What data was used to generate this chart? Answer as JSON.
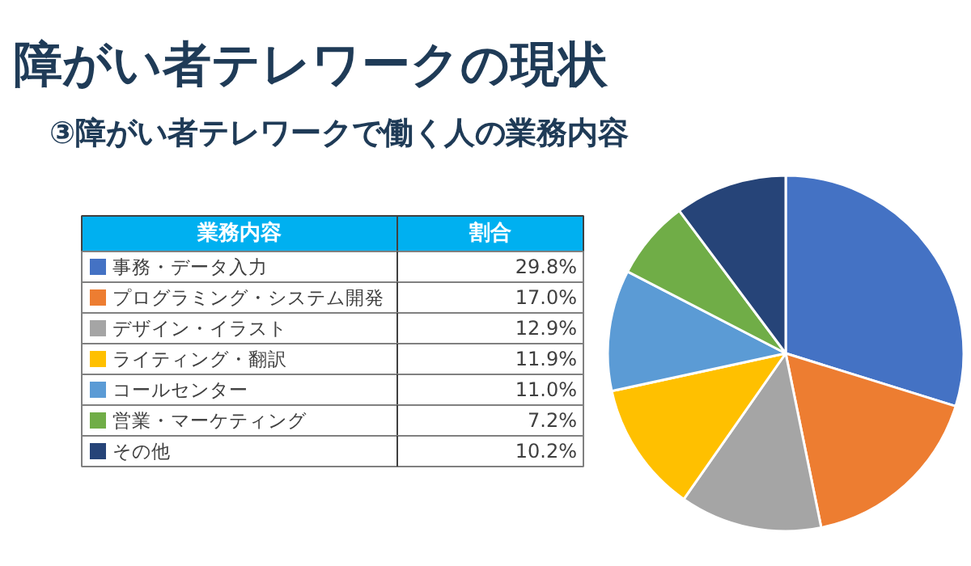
{
  "chart_data": {
    "type": "pie",
    "title": "障がい者テレワークの現状",
    "subtitle": "③障がい者テレワークで働く人の業務内容",
    "legend_title": "業務内容",
    "annotations": [
      "割合"
    ],
    "categories": [
      "事務・データ入力",
      "プログラミング・システム開発",
      "デザイン・イラスト",
      "ライティング・翻訳",
      "コールセンター",
      "営業・マーケティング",
      "その他"
    ],
    "values": [
      29.8,
      17.0,
      12.9,
      11.9,
      11.0,
      7.2,
      10.2
    ],
    "value_labels": [
      "29.8%",
      "17.0%",
      "12.9%",
      "11.9%",
      "11.0%",
      "7.2%",
      "10.2%"
    ],
    "colors": [
      "#4472c4",
      "#ed7d31",
      "#a5a5a5",
      "#ffc000",
      "#5b9bd5",
      "#70ad47",
      "#264478"
    ],
    "legend": "left"
  }
}
